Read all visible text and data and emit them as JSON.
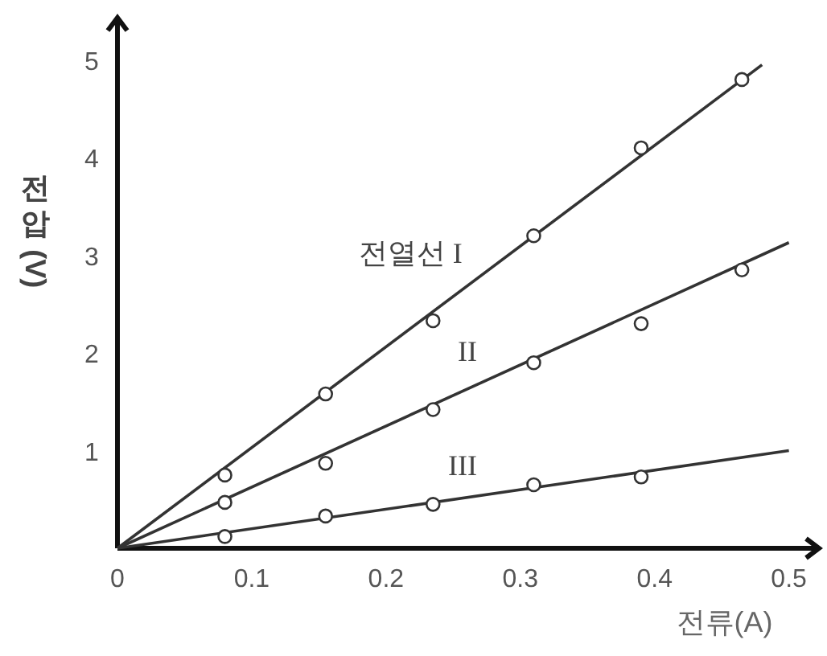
{
  "chart_data": {
    "type": "line",
    "xlabel": "전류(A)",
    "ylabel": "전압(V)",
    "xlim": [
      0,
      0.52
    ],
    "ylim": [
      0,
      5.4
    ],
    "xticks": [
      0,
      0.1,
      0.2,
      0.3,
      0.4,
      0.5
    ],
    "yticks": [
      1,
      2,
      3,
      4,
      5
    ],
    "grid": false,
    "series": [
      {
        "type": "scatter",
        "marker": "circle",
        "color": "#333333",
        "x": [
          0.08,
          0.155,
          0.235,
          0.31,
          0.39,
          0.465
        ],
        "values": [
          0.75,
          1.58,
          2.33,
          3.2,
          4.1,
          4.8
        ]
      },
      {
        "type": "scatter",
        "marker": "circle",
        "color": "#333333",
        "x": [
          0.08,
          0.155,
          0.235,
          0.31,
          0.39,
          0.465
        ],
        "values": [
          0.47,
          0.87,
          1.42,
          1.9,
          2.3,
          2.85
        ]
      },
      {
        "type": "scatter",
        "marker": "circle",
        "color": "#333333",
        "x": [
          0.08,
          0.155,
          0.235,
          0.31,
          0.39
        ],
        "values": [
          0.12,
          0.33,
          0.45,
          0.65,
          0.73
        ]
      },
      {
        "type": "line",
        "name": "전열선 I",
        "color": "#333333",
        "x": [
          0,
          0.48
        ],
        "values": [
          0,
          4.95
        ]
      },
      {
        "type": "line",
        "name": "II",
        "color": "#333333",
        "x": [
          0,
          0.5
        ],
        "values": [
          0,
          3.13
        ]
      },
      {
        "type": "line",
        "name": "III",
        "color": "#333333",
        "x": [
          0,
          0.5
        ],
        "values": [
          0,
          1.0
        ]
      }
    ]
  }
}
